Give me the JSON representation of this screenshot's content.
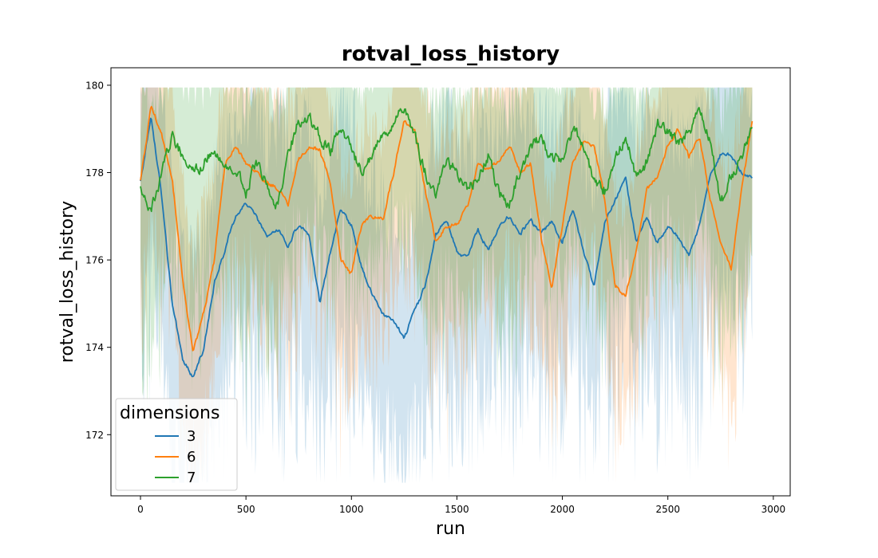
{
  "chart_data": {
    "type": "line",
    "title": "rotval_loss_history",
    "xlabel": "run",
    "ylabel": "rotval_loss_history",
    "xlim": [
      -140,
      3080
    ],
    "ylim": [
      170.6,
      180.4
    ],
    "xticks": [
      0,
      500,
      1000,
      1500,
      2000,
      2500,
      3000
    ],
    "yticks": [
      172,
      174,
      176,
      178,
      180
    ],
    "grid": false,
    "legend": {
      "title": "dimensions",
      "placement": "lower-left"
    },
    "series": [
      {
        "name": "3",
        "color": "#1f77b4",
        "x": [
          0,
          50,
          100,
          150,
          200,
          250,
          300,
          350,
          400,
          450,
          500,
          550,
          600,
          650,
          700,
          750,
          800,
          850,
          900,
          950,
          1000,
          1050,
          1100,
          1150,
          1200,
          1250,
          1300,
          1350,
          1400,
          1450,
          1500,
          1550,
          1600,
          1650,
          1700,
          1750,
          1800,
          1850,
          1900,
          1950,
          2000,
          2050,
          2100,
          2150,
          2200,
          2250,
          2300,
          2350,
          2400,
          2450,
          2500,
          2550,
          2600,
          2650,
          2700,
          2750,
          2800,
          2850,
          2900
        ],
        "y": [
          177.8,
          179.3,
          177.5,
          175.0,
          173.7,
          173.3,
          174.0,
          175.5,
          176.2,
          177.0,
          177.3,
          177.0,
          176.5,
          176.7,
          176.3,
          176.8,
          176.6,
          175.0,
          176.2,
          177.2,
          176.8,
          175.8,
          175.2,
          174.8,
          174.6,
          174.2,
          174.9,
          175.4,
          176.6,
          176.9,
          176.2,
          176.1,
          176.7,
          176.2,
          176.8,
          177.0,
          176.6,
          176.9,
          176.6,
          176.9,
          176.4,
          177.2,
          176.2,
          175.4,
          176.8,
          177.4,
          177.9,
          176.4,
          177.0,
          176.4,
          176.8,
          176.5,
          176.1,
          176.8,
          177.9,
          178.4,
          178.4,
          178.0,
          177.9
        ]
      },
      {
        "name": "6",
        "color": "#ff7f0e",
        "x": [
          0,
          50,
          100,
          150,
          200,
          250,
          300,
          350,
          400,
          450,
          500,
          550,
          600,
          650,
          700,
          750,
          800,
          850,
          900,
          950,
          1000,
          1050,
          1100,
          1150,
          1200,
          1250,
          1300,
          1350,
          1400,
          1450,
          1500,
          1550,
          1600,
          1650,
          1700,
          1750,
          1800,
          1850,
          1900,
          1950,
          2000,
          2050,
          2100,
          2150,
          2200,
          2250,
          2300,
          2350,
          2400,
          2450,
          2500,
          2550,
          2600,
          2650,
          2700,
          2750,
          2800,
          2850,
          2900
        ],
        "y": [
          177.8,
          179.5,
          178.9,
          177.9,
          175.5,
          173.9,
          174.8,
          176.0,
          178.2,
          178.6,
          178.2,
          178.0,
          177.8,
          177.6,
          177.3,
          178.3,
          178.6,
          178.5,
          177.8,
          176.0,
          175.7,
          176.8,
          177.0,
          176.9,
          178.0,
          179.2,
          179.0,
          177.6,
          176.4,
          176.8,
          176.8,
          177.2,
          178.2,
          178.1,
          178.3,
          178.6,
          178.0,
          178.2,
          176.5,
          175.4,
          176.8,
          178.3,
          178.7,
          178.6,
          177.4,
          175.4,
          175.2,
          176.2,
          177.6,
          177.9,
          178.6,
          179.0,
          178.4,
          178.8,
          177.4,
          176.4,
          175.8,
          177.6,
          179.2
        ]
      },
      {
        "name": "7",
        "color": "#2ca02c",
        "x": [
          0,
          50,
          100,
          150,
          200,
          250,
          300,
          350,
          400,
          450,
          500,
          550,
          600,
          650,
          700,
          750,
          800,
          850,
          900,
          950,
          1000,
          1050,
          1100,
          1150,
          1200,
          1250,
          1300,
          1350,
          1400,
          1450,
          1500,
          1550,
          1600,
          1650,
          1700,
          1750,
          1800,
          1850,
          1900,
          1950,
          2000,
          2050,
          2100,
          2150,
          2200,
          2250,
          2300,
          2350,
          2400,
          2450,
          2500,
          2550,
          2600,
          2650,
          2700,
          2750,
          2800,
          2850,
          2900
        ],
        "y": [
          177.6,
          177.2,
          178.0,
          178.8,
          178.4,
          178.0,
          178.2,
          178.6,
          178.1,
          178.0,
          177.6,
          178.2,
          177.8,
          177.2,
          178.4,
          179.2,
          179.3,
          178.8,
          178.5,
          179.0,
          178.6,
          178.0,
          178.5,
          178.9,
          179.1,
          179.5,
          178.8,
          178.0,
          177.6,
          178.3,
          178.0,
          177.6,
          178.0,
          178.4,
          177.5,
          177.3,
          178.0,
          178.6,
          178.8,
          178.3,
          178.2,
          179.0,
          178.6,
          177.8,
          177.6,
          178.2,
          178.9,
          177.9,
          178.2,
          179.1,
          179.0,
          178.6,
          178.9,
          179.5,
          178.8,
          177.2,
          177.9,
          178.4,
          179.1
        ]
      }
    ]
  }
}
